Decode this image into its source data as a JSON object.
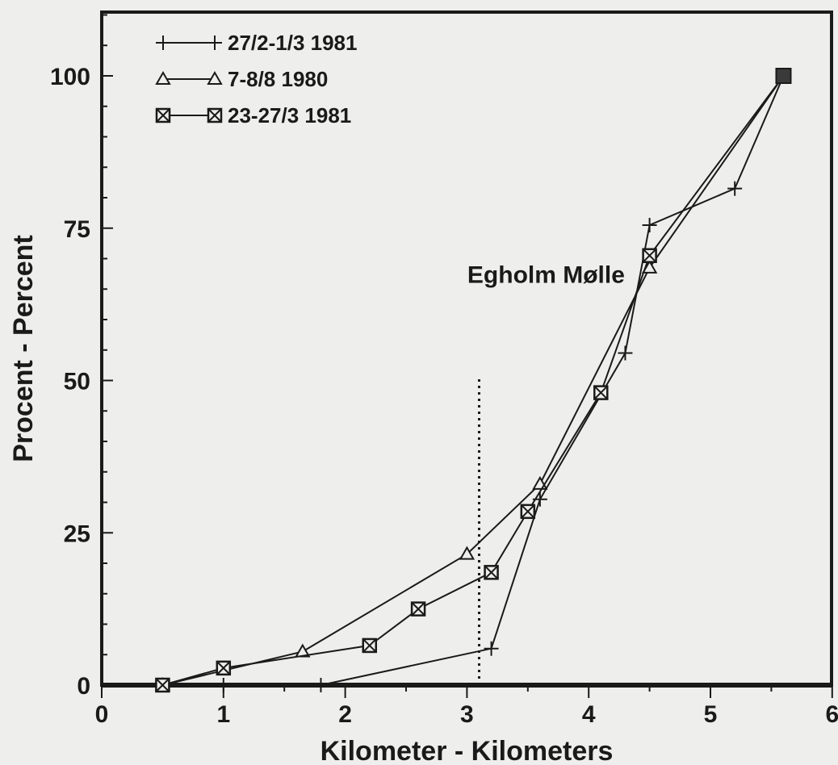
{
  "chart_data": {
    "type": "line",
    "title": "",
    "xlabel": "Kilometer - Kilometers",
    "ylabel": "Procent - Percent",
    "xlim": [
      0,
      6
    ],
    "ylim": [
      0,
      110
    ],
    "x_ticks": [
      0,
      1,
      2,
      3,
      4,
      5,
      6
    ],
    "y_ticks": [
      0,
      25,
      50,
      75,
      100
    ],
    "grid": false,
    "legend_position": "top-left",
    "annotations": [
      {
        "text": "Egholm Mølle",
        "x": 3.65,
        "y": 66
      }
    ],
    "reference_lines": [
      {
        "orientation": "vertical",
        "x": 3.1,
        "y_range": [
          0,
          50.5
        ],
        "style": "dotted"
      }
    ],
    "series": [
      {
        "name": "27/2-1/3 1981",
        "marker": "plus",
        "x": [
          1.0,
          1.8,
          3.2,
          3.6,
          4.3,
          4.5,
          5.2,
          5.6
        ],
        "y": [
          0,
          0,
          6,
          30.5,
          54.5,
          75.5,
          81.5,
          100
        ]
      },
      {
        "name": "7-8/8 1980",
        "marker": "triangle",
        "x": [
          0.5,
          1.65,
          3.0,
          3.6,
          4.5,
          5.6
        ],
        "y": [
          0,
          5.5,
          21.5,
          33,
          68.5,
          100
        ]
      },
      {
        "name": "23-27/3 1981",
        "marker": "boxed-x",
        "x": [
          0.5,
          1.0,
          2.2,
          2.6,
          3.2,
          3.5,
          4.1,
          4.5,
          5.6
        ],
        "y": [
          0,
          2.8,
          6.5,
          12.5,
          18.5,
          28.5,
          48,
          70.5,
          100
        ]
      }
    ]
  }
}
